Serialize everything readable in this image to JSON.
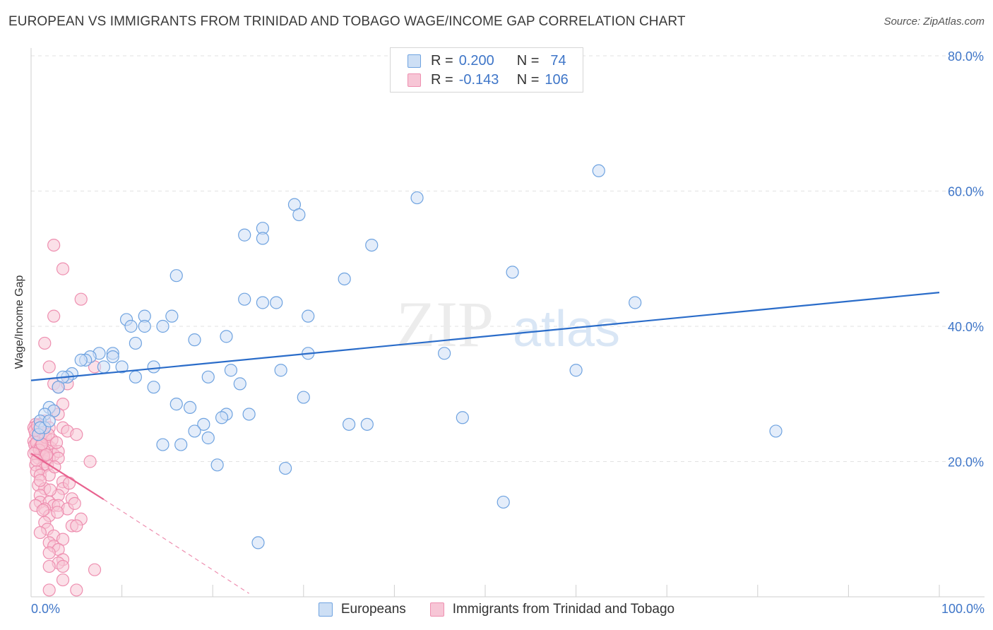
{
  "title": "EUROPEAN VS IMMIGRANTS FROM TRINIDAD AND TOBAGO WAGE/INCOME GAP CORRELATION CHART",
  "source": "Source: ZipAtlas.com",
  "watermark": {
    "zip": "ZIP",
    "atlas": "atlas"
  },
  "legend_top": {
    "r_label": "R =",
    "n_label": "N =",
    "series": [
      {
        "r": "0.200",
        "n": "74"
      },
      {
        "r": "-0.143",
        "n": "106"
      }
    ]
  },
  "legend_bottom": [
    "Europeans",
    "Immigrants from Trinidad and Tobago"
  ],
  "colors": {
    "blue": "#6fa3e0",
    "blue_fill": "#cddff5",
    "blue_line": "#2a6cc9",
    "pink": "#ee8fb0",
    "pink_fill": "#f7c6d6",
    "pink_line": "#e8628f",
    "axis_text": "#3f76c8",
    "grid": "#e2e2e2"
  },
  "chart_data": {
    "type": "scatter",
    "title": "EUROPEAN VS IMMIGRANTS FROM TRINIDAD AND TOBAGO WAGE/INCOME GAP CORRELATION CHART",
    "xlabel": "",
    "ylabel": "Wage/Income Gap",
    "xlim": [
      0,
      100
    ],
    "ylim": [
      0,
      80
    ],
    "x_tick_labels": [
      "0.0%",
      "100.0%"
    ],
    "y_ticks": [
      20,
      40,
      60,
      80
    ],
    "y_tick_labels": [
      "20.0%",
      "40.0%",
      "60.0%",
      "80.0%"
    ],
    "series": [
      {
        "name": "Europeans",
        "r": 0.2,
        "n": 74,
        "trend": {
          "x0": 0,
          "y0": 32.0,
          "x1": 100,
          "y1": 45.0
        },
        "points": [
          [
            62.5,
            63.0
          ],
          [
            42.5,
            59.0
          ],
          [
            29.0,
            58.0
          ],
          [
            29.5,
            56.5
          ],
          [
            25.5,
            54.5
          ],
          [
            23.5,
            53.5
          ],
          [
            25.5,
            53.0
          ],
          [
            37.5,
            52.0
          ],
          [
            53.0,
            48.0
          ],
          [
            16.0,
            47.5
          ],
          [
            34.5,
            47.0
          ],
          [
            23.5,
            44.0
          ],
          [
            25.5,
            43.5
          ],
          [
            27.0,
            43.5
          ],
          [
            66.5,
            43.5
          ],
          [
            30.5,
            41.5
          ],
          [
            12.5,
            41.5
          ],
          [
            15.5,
            41.5
          ],
          [
            10.5,
            41.0
          ],
          [
            14.5,
            40.0
          ],
          [
            11.0,
            40.0
          ],
          [
            12.5,
            40.0
          ],
          [
            21.5,
            38.5
          ],
          [
            18.0,
            38.0
          ],
          [
            11.5,
            37.5
          ],
          [
            7.5,
            36.0
          ],
          [
            9.0,
            36.0
          ],
          [
            9.0,
            35.5
          ],
          [
            6.5,
            35.5
          ],
          [
            30.5,
            36.0
          ],
          [
            45.5,
            36.0
          ],
          [
            6.0,
            35.0
          ],
          [
            5.5,
            35.0
          ],
          [
            8.0,
            34.0
          ],
          [
            10.0,
            34.0
          ],
          [
            13.5,
            34.0
          ],
          [
            22.0,
            33.5
          ],
          [
            27.5,
            33.5
          ],
          [
            60.0,
            33.5
          ],
          [
            4.5,
            33.0
          ],
          [
            4.0,
            32.5
          ],
          [
            3.5,
            32.5
          ],
          [
            11.5,
            32.5
          ],
          [
            19.5,
            32.5
          ],
          [
            23.0,
            31.5
          ],
          [
            3.0,
            31.0
          ],
          [
            13.5,
            31.0
          ],
          [
            30.0,
            29.5
          ],
          [
            16.0,
            28.5
          ],
          [
            17.5,
            28.0
          ],
          [
            2.0,
            28.0
          ],
          [
            2.5,
            27.5
          ],
          [
            1.5,
            27.0
          ],
          [
            24.0,
            27.0
          ],
          [
            21.5,
            27.0
          ],
          [
            21.0,
            26.5
          ],
          [
            47.5,
            26.5
          ],
          [
            1.0,
            26.0
          ],
          [
            19.0,
            25.5
          ],
          [
            35.0,
            25.5
          ],
          [
            37.0,
            25.5
          ],
          [
            1.5,
            25.0
          ],
          [
            18.0,
            24.5
          ],
          [
            82.0,
            24.5
          ],
          [
            0.8,
            24.0
          ],
          [
            19.5,
            23.5
          ],
          [
            14.5,
            22.5
          ],
          [
            16.5,
            22.5
          ],
          [
            20.5,
            19.5
          ],
          [
            28.0,
            19.0
          ],
          [
            52.0,
            14.0
          ],
          [
            25.0,
            8.0
          ],
          [
            1.0,
            25.0
          ],
          [
            2.0,
            26.0
          ]
        ]
      },
      {
        "name": "Immigrants from Trinidad and Tobago",
        "r": -0.143,
        "n": 106,
        "trend": {
          "x0": 0,
          "y0": 21.2,
          "x1": 8.0,
          "y1": 14.4
        },
        "trend_dashed": {
          "x0": 8.0,
          "y0": 14.4,
          "x1": 24.0,
          "y1": 0.5
        },
        "points": [
          [
            2.5,
            52.0
          ],
          [
            3.5,
            48.5
          ],
          [
            5.5,
            44.0
          ],
          [
            2.5,
            41.5
          ],
          [
            1.5,
            37.5
          ],
          [
            2.0,
            34.0
          ],
          [
            7.0,
            34.0
          ],
          [
            2.5,
            31.5
          ],
          [
            3.0,
            31.0
          ],
          [
            4.0,
            31.5
          ],
          [
            3.5,
            28.5
          ],
          [
            2.5,
            27.5
          ],
          [
            3.0,
            27.0
          ],
          [
            1.5,
            26.0
          ],
          [
            1.0,
            25.5
          ],
          [
            0.5,
            25.5
          ],
          [
            0.3,
            25.0
          ],
          [
            0.8,
            24.5
          ],
          [
            2.0,
            25.0
          ],
          [
            3.5,
            25.0
          ],
          [
            4.0,
            24.5
          ],
          [
            5.0,
            24.0
          ],
          [
            0.5,
            24.0
          ],
          [
            1.0,
            23.5
          ],
          [
            0.3,
            23.0
          ],
          [
            0.7,
            23.0
          ],
          [
            1.2,
            23.0
          ],
          [
            1.5,
            22.5
          ],
          [
            0.4,
            22.5
          ],
          [
            0.9,
            22.0
          ],
          [
            1.8,
            22.5
          ],
          [
            2.2,
            22.0
          ],
          [
            0.5,
            21.5
          ],
          [
            1.0,
            21.0
          ],
          [
            1.5,
            21.5
          ],
          [
            2.5,
            21.0
          ],
          [
            3.0,
            21.5
          ],
          [
            0.8,
            20.5
          ],
          [
            1.5,
            20.0
          ],
          [
            2.0,
            20.5
          ],
          [
            3.0,
            20.5
          ],
          [
            0.5,
            19.5
          ],
          [
            1.2,
            19.0
          ],
          [
            1.8,
            19.5
          ],
          [
            6.5,
            20.0
          ],
          [
            0.6,
            18.5
          ],
          [
            1.0,
            18.0
          ],
          [
            2.0,
            18.0
          ],
          [
            3.5,
            17.0
          ],
          [
            0.8,
            16.5
          ],
          [
            1.5,
            16.0
          ],
          [
            3.5,
            16.0
          ],
          [
            1.0,
            15.0
          ],
          [
            3.0,
            15.0
          ],
          [
            4.5,
            14.5
          ],
          [
            1.0,
            14.0
          ],
          [
            2.0,
            14.0
          ],
          [
            2.5,
            13.5
          ],
          [
            3.0,
            13.5
          ],
          [
            0.5,
            13.5
          ],
          [
            1.5,
            13.0
          ],
          [
            4.0,
            13.0
          ],
          [
            2.0,
            12.0
          ],
          [
            5.5,
            11.5
          ],
          [
            1.5,
            11.0
          ],
          [
            4.5,
            10.5
          ],
          [
            1.8,
            10.0
          ],
          [
            5.0,
            10.5
          ],
          [
            1.0,
            9.5
          ],
          [
            2.5,
            9.0
          ],
          [
            3.5,
            8.5
          ],
          [
            2.0,
            8.0
          ],
          [
            2.5,
            7.5
          ],
          [
            3.0,
            7.0
          ],
          [
            2.0,
            6.5
          ],
          [
            3.5,
            5.5
          ],
          [
            3.0,
            5.0
          ],
          [
            2.0,
            4.5
          ],
          [
            3.5,
            4.5
          ],
          [
            7.0,
            4.0
          ],
          [
            3.5,
            2.5
          ],
          [
            2.0,
            1.0
          ],
          [
            5.0,
            1.0
          ],
          [
            1.0,
            23.8
          ],
          [
            1.3,
            24.2
          ],
          [
            0.6,
            22.8
          ],
          [
            1.1,
            22.3
          ],
          [
            1.6,
            23.6
          ],
          [
            0.9,
            21.7
          ],
          [
            1.4,
            20.8
          ],
          [
            2.3,
            23.2
          ],
          [
            0.4,
            24.6
          ],
          [
            0.7,
            25.3
          ],
          [
            1.9,
            24.0
          ],
          [
            1.2,
            22.6
          ],
          [
            0.3,
            21.2
          ],
          [
            2.8,
            22.8
          ],
          [
            1.7,
            21.0
          ],
          [
            2.6,
            19.2
          ],
          [
            0.6,
            20.2
          ],
          [
            1.0,
            17.2
          ],
          [
            2.1,
            15.8
          ],
          [
            1.3,
            12.8
          ],
          [
            4.2,
            16.8
          ],
          [
            2.9,
            12.5
          ],
          [
            4.8,
            13.8
          ]
        ]
      }
    ]
  }
}
